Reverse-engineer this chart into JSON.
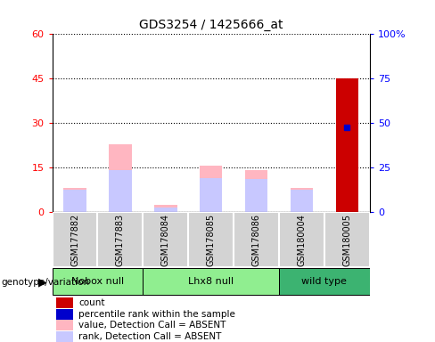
{
  "title": "GDS3254 / 1425666_at",
  "samples": [
    "GSM177882",
    "GSM177883",
    "GSM178084",
    "GSM178085",
    "GSM178086",
    "GSM180004",
    "GSM180005"
  ],
  "groups": [
    {
      "label": "Nobox null",
      "start": 0,
      "end": 2,
      "color": "#90EE90"
    },
    {
      "label": "Lhx8 null",
      "start": 2,
      "end": 5,
      "color": "#90EE90"
    },
    {
      "label": "wild type",
      "start": 5,
      "end": 7,
      "color": "#3CB371"
    }
  ],
  "value_absent": [
    8.0,
    23.0,
    2.5,
    15.5,
    14.0,
    8.0,
    45.0
  ],
  "rank_absent": [
    7.5,
    14.0,
    1.5,
    11.5,
    11.0,
    7.5,
    28.5
  ],
  "count": [
    0,
    0,
    0,
    0,
    0,
    0,
    45.0
  ],
  "percentile_rank": [
    0,
    0,
    0,
    0,
    0,
    0,
    28.5
  ],
  "left_ylim": [
    0,
    60
  ],
  "left_yticks": [
    0,
    15,
    30,
    45,
    60
  ],
  "right_yticks": [
    0,
    15,
    30,
    45,
    60
  ],
  "right_yticklabels": [
    "0",
    "25",
    "50",
    "75",
    "100%"
  ],
  "bar_width": 0.5,
  "colors": {
    "count": "#CC0000",
    "percentile_rank": "#0000CC",
    "value_absent": "#FFB6C1",
    "rank_absent": "#C8C8FF",
    "bg_gray": "#D3D3D3"
  },
  "legend_items": [
    {
      "label": "count",
      "color": "#CC0000"
    },
    {
      "label": "percentile rank within the sample",
      "color": "#0000CC"
    },
    {
      "label": "value, Detection Call = ABSENT",
      "color": "#FFB6C1"
    },
    {
      "label": "rank, Detection Call = ABSENT",
      "color": "#C8C8FF"
    }
  ]
}
